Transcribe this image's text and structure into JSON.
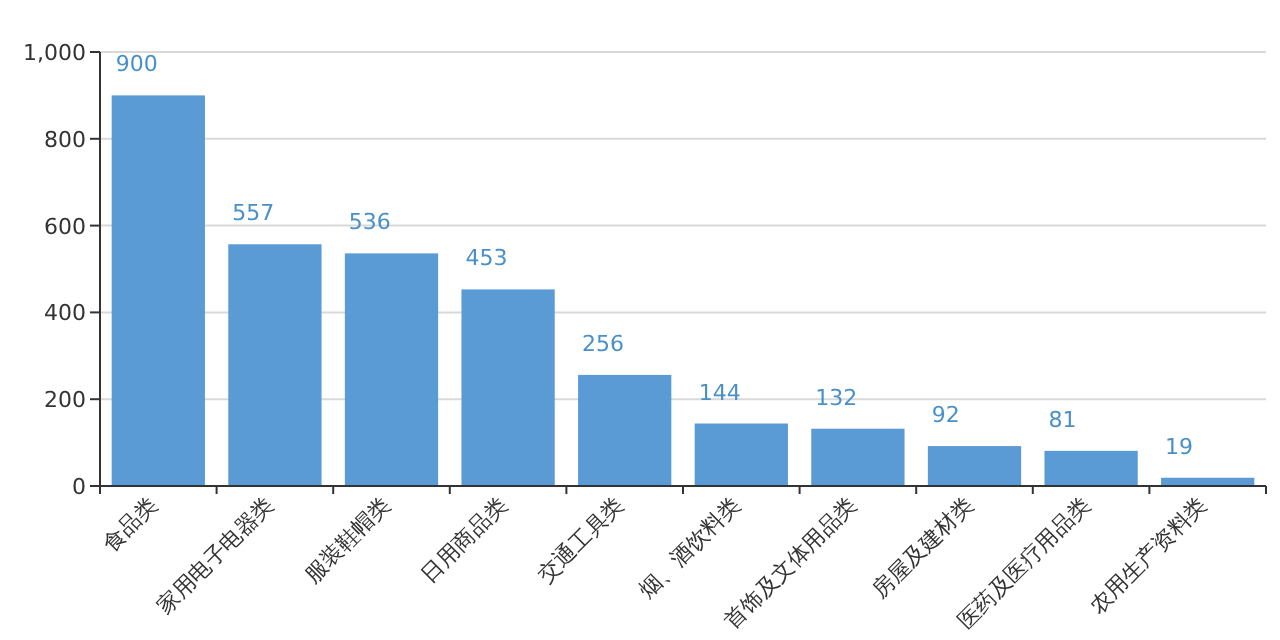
{
  "chart_data": {
    "type": "bar",
    "categories": [
      "食品类",
      "家用电子电器类",
      "服装鞋帽类",
      "日用商品类",
      "交通工具类",
      "烟、酒饮料类",
      "首饰及文体用品类",
      "房屋及建材类",
      "医药及医疗用品类",
      "农用生产资料类"
    ],
    "values": [
      900,
      557,
      536,
      453,
      256,
      144,
      132,
      92,
      81,
      19
    ],
    "color": "#5b9bd5",
    "ylim": [
      0,
      1000
    ],
    "yticks": [
      0,
      200,
      400,
      600,
      800,
      {
        "value": 1000,
        "label": "1,000"
      }
    ],
    "grid": "y",
    "data_labels": true
  }
}
